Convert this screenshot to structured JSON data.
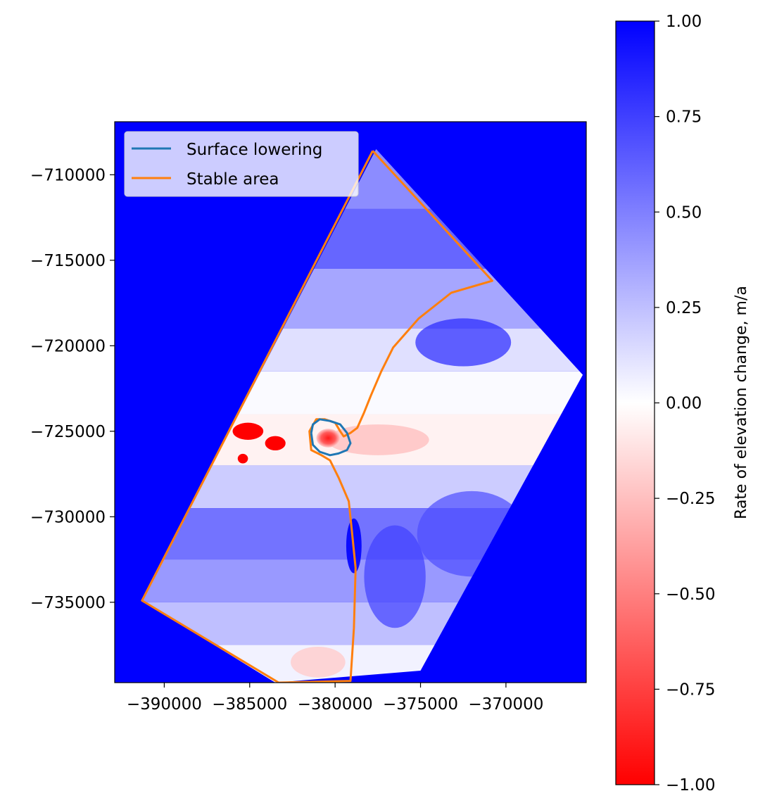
{
  "chart_data": {
    "type": "heatmap",
    "title": "",
    "xlabel": "",
    "ylabel": "",
    "x_range": [
      -392900,
      -365300
    ],
    "y_range": [
      -739700,
      -706900
    ],
    "x_ticks": [
      -390000,
      -385000,
      -380000,
      -375000,
      -370000
    ],
    "x_tick_labels": [
      "−390000",
      "−385000",
      "−380000",
      "−375000",
      "−370000"
    ],
    "y_ticks": [
      -710000,
      -715000,
      -720000,
      -725000,
      -730000,
      -735000
    ],
    "y_tick_labels": [
      "−710000",
      "−715000",
      "−720000",
      "−725000",
      "−730000",
      "−735000"
    ],
    "background_value": 1.0,
    "colormap": {
      "low_color": "#ff0000",
      "mid_color": "#ffffff",
      "high_color": "#0000ff",
      "vmin": -1.0,
      "vmax": 1.0
    },
    "colorbar": {
      "label": "Rate of elevation change, m/a",
      "ticks": [
        -1.0,
        -0.75,
        -0.5,
        -0.25,
        0.0,
        0.25,
        0.5,
        0.75,
        1.0
      ],
      "tick_labels": [
        "−1.00",
        "−0.75",
        "−0.50",
        "−0.25",
        "0.00",
        "0.25",
        "0.50",
        "0.75",
        "1.00"
      ]
    },
    "legend": {
      "placement": "upper-left",
      "entries": [
        {
          "label": "Surface lowering",
          "color": "#1f77b4"
        },
        {
          "label": "Stable area",
          "color": "#ff7f0e"
        }
      ]
    },
    "data_footprint": {
      "value_range": [
        -0.3,
        0.8
      ],
      "polygon": [
        [
          -377600,
          -708500
        ],
        [
          -365500,
          -721700
        ],
        [
          -375000,
          -739000
        ],
        [
          -383500,
          -739700
        ],
        [
          -391300,
          -734900
        ]
      ]
    },
    "series": [
      {
        "name": "Stable area",
        "color": "#ff7f0e",
        "x": [
          -377800,
          -370800,
          -373200,
          -375100,
          -376600,
          -377300,
          -377900,
          -378300,
          -378700,
          -379100,
          -379500,
          -379700,
          -380000,
          -380600,
          -381100,
          -381500,
          -381400,
          -380800,
          -380300,
          -379800,
          -379200,
          -379000,
          -378800,
          -378900,
          -379100,
          -383300,
          -391300,
          -377800
        ],
        "y": [
          -708600,
          -716200,
          -716900,
          -718400,
          -720100,
          -721500,
          -722900,
          -723900,
          -724800,
          -725100,
          -725300,
          -725000,
          -724500,
          -724300,
          -724300,
          -725000,
          -726100,
          -726400,
          -726700,
          -727700,
          -729100,
          -731000,
          -733000,
          -736500,
          -739600,
          -739700,
          -734900,
          -708600
        ]
      },
      {
        "name": "Surface lowering",
        "color": "#1f77b4",
        "x": [
          -381400,
          -381300,
          -380900,
          -380300,
          -379700,
          -379300,
          -379100,
          -379300,
          -379800,
          -380300,
          -380900,
          -381300,
          -381400
        ],
        "y": [
          -725100,
          -724600,
          -724300,
          -724400,
          -724600,
          -725100,
          -725700,
          -726100,
          -726300,
          -726400,
          -726200,
          -725800,
          -725100
        ]
      }
    ],
    "negative_patches": [
      {
        "center": [
          -385100,
          -725000
        ],
        "radius": [
          900,
          500
        ],
        "value": -1.0
      },
      {
        "center": [
          -383500,
          -725700
        ],
        "radius": [
          600,
          420
        ],
        "value": -1.0
      },
      {
        "center": [
          -385400,
          -726600
        ],
        "radius": [
          300,
          280
        ],
        "value": -1.0
      },
      {
        "center": [
          -380400,
          -725400
        ],
        "radius": [
          700,
          550
        ],
        "value": -0.8
      }
    ],
    "positive_patches": [
      {
        "center": [
          -378900,
          -731700
        ],
        "radius": [
          450,
          1600
        ],
        "value": 1.0
      }
    ]
  }
}
